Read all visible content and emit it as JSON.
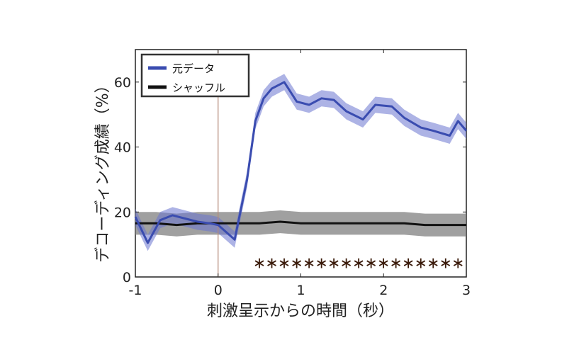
{
  "chart_data": {
    "type": "line",
    "xlabel": "刺激呈示からの時間（秒）",
    "ylabel": "デコーディング成績（%）",
    "xlim": [
      -1,
      3
    ],
    "ylim": [
      0,
      70
    ],
    "xticks": [
      -1,
      0,
      1,
      2,
      3
    ],
    "yticks": [
      0,
      20,
      40,
      60
    ],
    "xtick_labels": [
      "-1",
      "0",
      "1",
      "2",
      "3"
    ],
    "ytick_labels": [
      "0",
      "20",
      "40",
      "60"
    ],
    "grid": false,
    "legend_position": "top-left",
    "stimulus_onset_x": 0,
    "series": [
      {
        "name": "元データ",
        "color": "#3a4cb0",
        "band_color": "#6a74d0",
        "x": [
          -1.0,
          -0.85,
          -0.7,
          -0.55,
          -0.4,
          -0.25,
          -0.1,
          0.0,
          0.2,
          0.35,
          0.45,
          0.55,
          0.65,
          0.8,
          0.95,
          1.1,
          1.25,
          1.4,
          1.55,
          1.75,
          1.9,
          2.1,
          2.25,
          2.45,
          2.6,
          2.8,
          2.9,
          3.0
        ],
        "values": [
          18.5,
          10.5,
          17.5,
          19.0,
          18.0,
          17.0,
          16.5,
          16.0,
          11.5,
          30.0,
          48.0,
          55.0,
          58.0,
          60.0,
          54.0,
          53.0,
          55.0,
          54.5,
          51.0,
          48.5,
          53.0,
          52.5,
          49.0,
          46.0,
          45.0,
          43.5,
          48.0,
          45.0
        ],
        "band_halfwidth": 2.5
      },
      {
        "name": "シャッフル",
        "color": "#111111",
        "band_color": "#808080",
        "x": [
          -1.0,
          -0.75,
          -0.5,
          -0.25,
          0.0,
          0.25,
          0.5,
          0.75,
          1.0,
          1.25,
          1.5,
          1.75,
          2.0,
          2.25,
          2.5,
          2.75,
          3.0
        ],
        "values": [
          16.5,
          16.5,
          16.0,
          16.5,
          16.5,
          16.5,
          16.5,
          17.0,
          16.5,
          16.5,
          16.5,
          16.5,
          16.5,
          16.5,
          16.0,
          16.0,
          16.0
        ],
        "band_halfwidth": 3.5
      }
    ],
    "significance_marker": "∗",
    "significance_y": 4.5,
    "significance_x": [
      0.5,
      0.65,
      0.8,
      0.95,
      1.1,
      1.25,
      1.4,
      1.55,
      1.7,
      1.85,
      2.0,
      2.15,
      2.3,
      2.45,
      2.6,
      2.75,
      2.9
    ]
  }
}
